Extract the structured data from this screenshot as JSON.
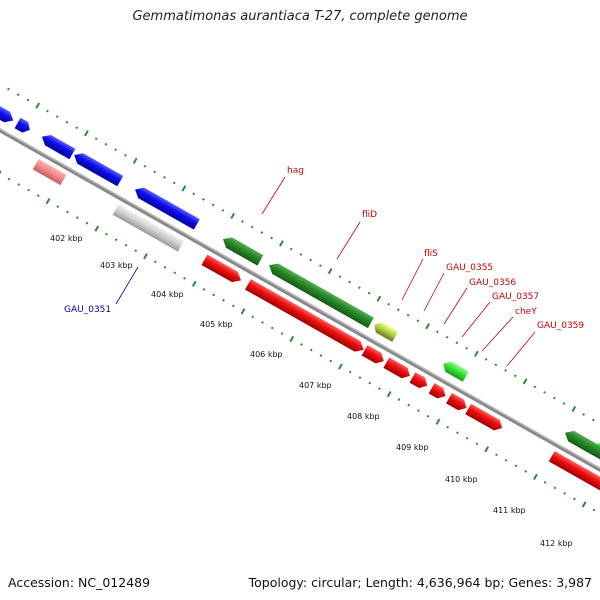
{
  "title": "Gemmatimonas aurantiaca T-27, complete genome",
  "footer": {
    "accession": "Accession: NC_012489",
    "topology": "Topology: circular; Length: 4,636,964 bp; Genes: 3,987"
  },
  "colors": {
    "backbone": "#888888",
    "dots": "#2d8a2d",
    "blue": "#1010ee",
    "red": "#ee1111",
    "pink": "#ee8888",
    "gray": "#cccccc",
    "dark_green": "#2a8a2a",
    "light_green": "#33dd33",
    "yellow_green": "#aacc44",
    "label_red": "#cc0000",
    "label_blue": "#000099"
  },
  "ticks": [
    "402 kbp",
    "403 kbp",
    "404 kbp",
    "405 kbp",
    "406 kbp",
    "407 kbp",
    "408 kbp",
    "409 kbp",
    "410 kbp",
    "411 kbp",
    "412 kbp"
  ],
  "gene_labels": {
    "hag": "hag",
    "fliD": "fliD",
    "fliS": "fliS",
    "gau0355": "GAU_0355",
    "gau0356": "GAU_0356",
    "gau0357": "GAU_0357",
    "cheY": "cheY",
    "gau0359": "GAU_0359",
    "gau0351": "GAU_0351"
  }
}
